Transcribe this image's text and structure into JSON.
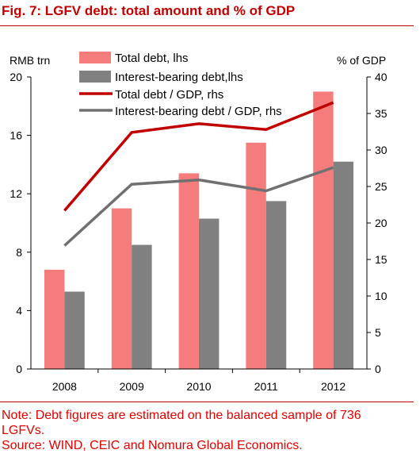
{
  "title": "Fig. 7: LGFV debt: total amount and % of GDP",
  "notes": {
    "line1": "Note: Debt figures are estimated on the balanced sample of 736",
    "line2": "LGFVs.",
    "source": "Source: WIND, CEIC and Nomura Global Economics."
  },
  "colors": {
    "title": "#c00000",
    "note": "#e00000",
    "total_debt_bar": "#f47c7c",
    "interest_debt_bar": "#808080",
    "total_gdp_line": "#c00000",
    "interest_gdp_line": "#707070",
    "axis": "#000000"
  },
  "chart_data": {
    "type": "bar",
    "categories": [
      "2008",
      "2009",
      "2010",
      "2011",
      "2012"
    ],
    "ylabel_left": "RMB trn",
    "ylabel_right": "% of GDP",
    "ylim_left": [
      0,
      20
    ],
    "yticks_left": [
      "0",
      "4",
      "8",
      "12",
      "16",
      "20"
    ],
    "ylim_right": [
      0,
      40
    ],
    "yticks_right": [
      "0",
      "5",
      "10",
      "15",
      "20",
      "25",
      "30",
      "35",
      "40"
    ],
    "grid": false,
    "legend_position": "top-left",
    "series": [
      {
        "name": "Total debt, lhs",
        "type": "bar",
        "axis": "left",
        "values": [
          6.8,
          11.0,
          13.4,
          15.5,
          19.0
        ]
      },
      {
        "name": "Interest-bearing debt,lhs",
        "type": "bar",
        "axis": "left",
        "values": [
          5.3,
          8.5,
          10.3,
          11.5,
          14.2
        ]
      },
      {
        "name": "Total debt / GDP, rhs",
        "type": "line",
        "axis": "right",
        "values": [
          21.7,
          32.4,
          33.6,
          32.8,
          36.5
        ]
      },
      {
        "name": "Interest-bearing debt / GDP, rhs",
        "type": "line",
        "axis": "right",
        "values": [
          16.9,
          25.3,
          25.9,
          24.4,
          27.6
        ]
      }
    ]
  }
}
